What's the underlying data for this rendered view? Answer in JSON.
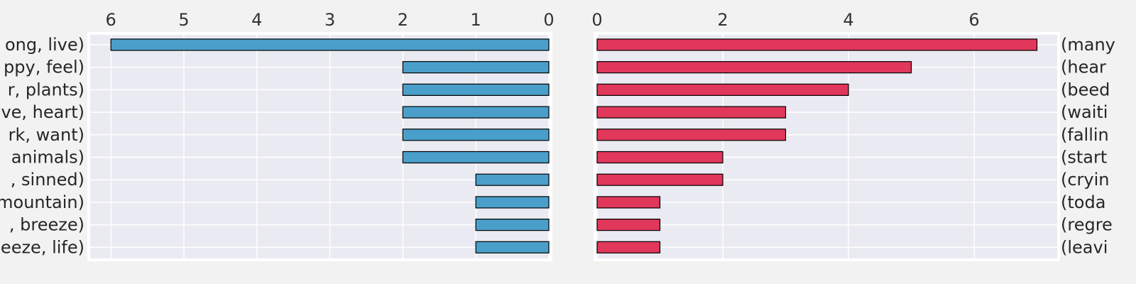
{
  "chart_data": [
    {
      "type": "bar",
      "orientation": "horizontal",
      "direction": "reversed-x",
      "color": "#4a9fca",
      "edge_color": "#000000",
      "grid": true,
      "xlim": [
        0,
        6.3
      ],
      "xticks": [
        "6",
        "5",
        "4",
        "3",
        "2",
        "1",
        "0"
      ],
      "categories": [
        "ong, live)",
        "ppy, feel)",
        "r, plants)",
        "ve, heart)",
        "rk, want)",
        " animals)",
        ", sinned)",
        "mountain)",
        ", breeze)",
        "eeze, life)"
      ],
      "values": [
        6,
        2,
        2,
        2,
        2,
        2,
        1,
        1,
        1,
        1
      ]
    },
    {
      "type": "bar",
      "orientation": "horizontal",
      "direction": "normal",
      "color": "#e0375a",
      "edge_color": "#000000",
      "grid": true,
      "xlim": [
        0,
        7.35
      ],
      "xticks": [
        "0",
        "2",
        "4",
        "6"
      ],
      "categories": [
        "(many",
        "(hear",
        "(beed",
        "(waiti",
        "(fallin",
        "(start",
        "(cryin",
        "(toda",
        "(regre",
        "(leavi"
      ],
      "values": [
        7,
        5,
        4,
        3,
        3,
        2,
        2,
        1,
        1,
        1
      ]
    }
  ]
}
